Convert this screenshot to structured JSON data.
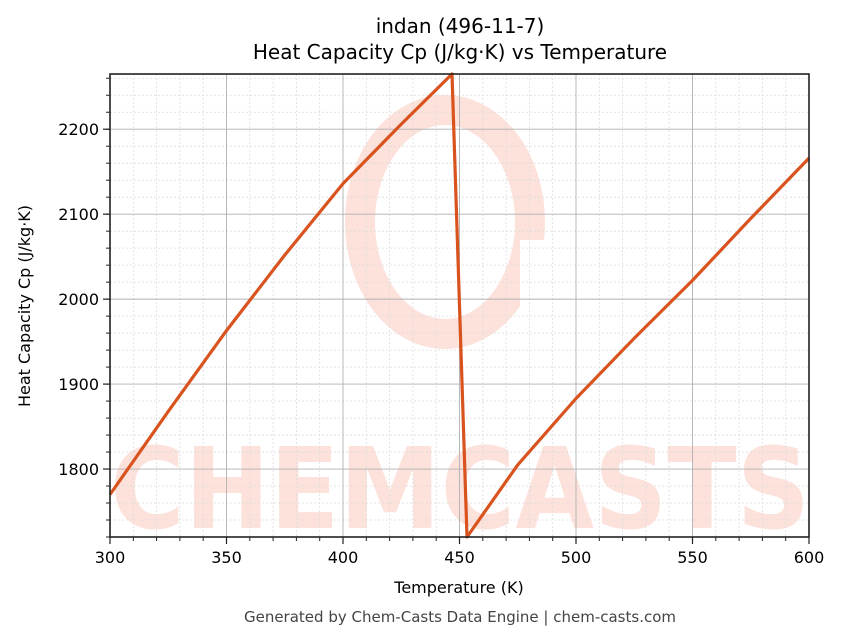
{
  "header": {
    "title_line1": "indan (496-11-7)",
    "title_line2": "Heat Capacity Cp (J/kg·K) vs Temperature"
  },
  "footer": {
    "text": "Generated by Chem-Casts Data Engine | chem-casts.com"
  },
  "watermark": {
    "text": "CHEMCASTS",
    "color": "#fde1db"
  },
  "colors": {
    "line": "#d9531e",
    "major_grid": "#b0b0b0",
    "minor_grid": "#dcdcdc",
    "axis": "#222222"
  },
  "chart_data": {
    "type": "line",
    "title": "indan (496-11-7)\nHeat Capacity Cp (J/kg·K) vs Temperature",
    "xlabel": "Temperature (K)",
    "ylabel": "Heat Capacity Cp (J/kg·K)",
    "xlim": [
      300,
      600
    ],
    "ylim": [
      1720,
      2265
    ],
    "xticks": [
      300,
      350,
      400,
      450,
      500,
      550,
      600
    ],
    "yticks": [
      1800,
      1900,
      2000,
      2100,
      2200
    ],
    "x_minor_step": 10,
    "y_minor_step": 20,
    "grid": true,
    "legend": null,
    "series": [
      {
        "name": "Cp",
        "x": [
          300,
          325,
          350,
          375,
          400,
          425,
          446.8,
          453.2,
          475,
          500,
          525,
          550,
          575,
          600
        ],
        "values": [
          1770,
          1868,
          1963,
          2052,
          2136,
          2206,
          2265,
          1720,
          1805,
          1883,
          1954,
          2022,
          2095,
          2166
        ]
      }
    ]
  }
}
